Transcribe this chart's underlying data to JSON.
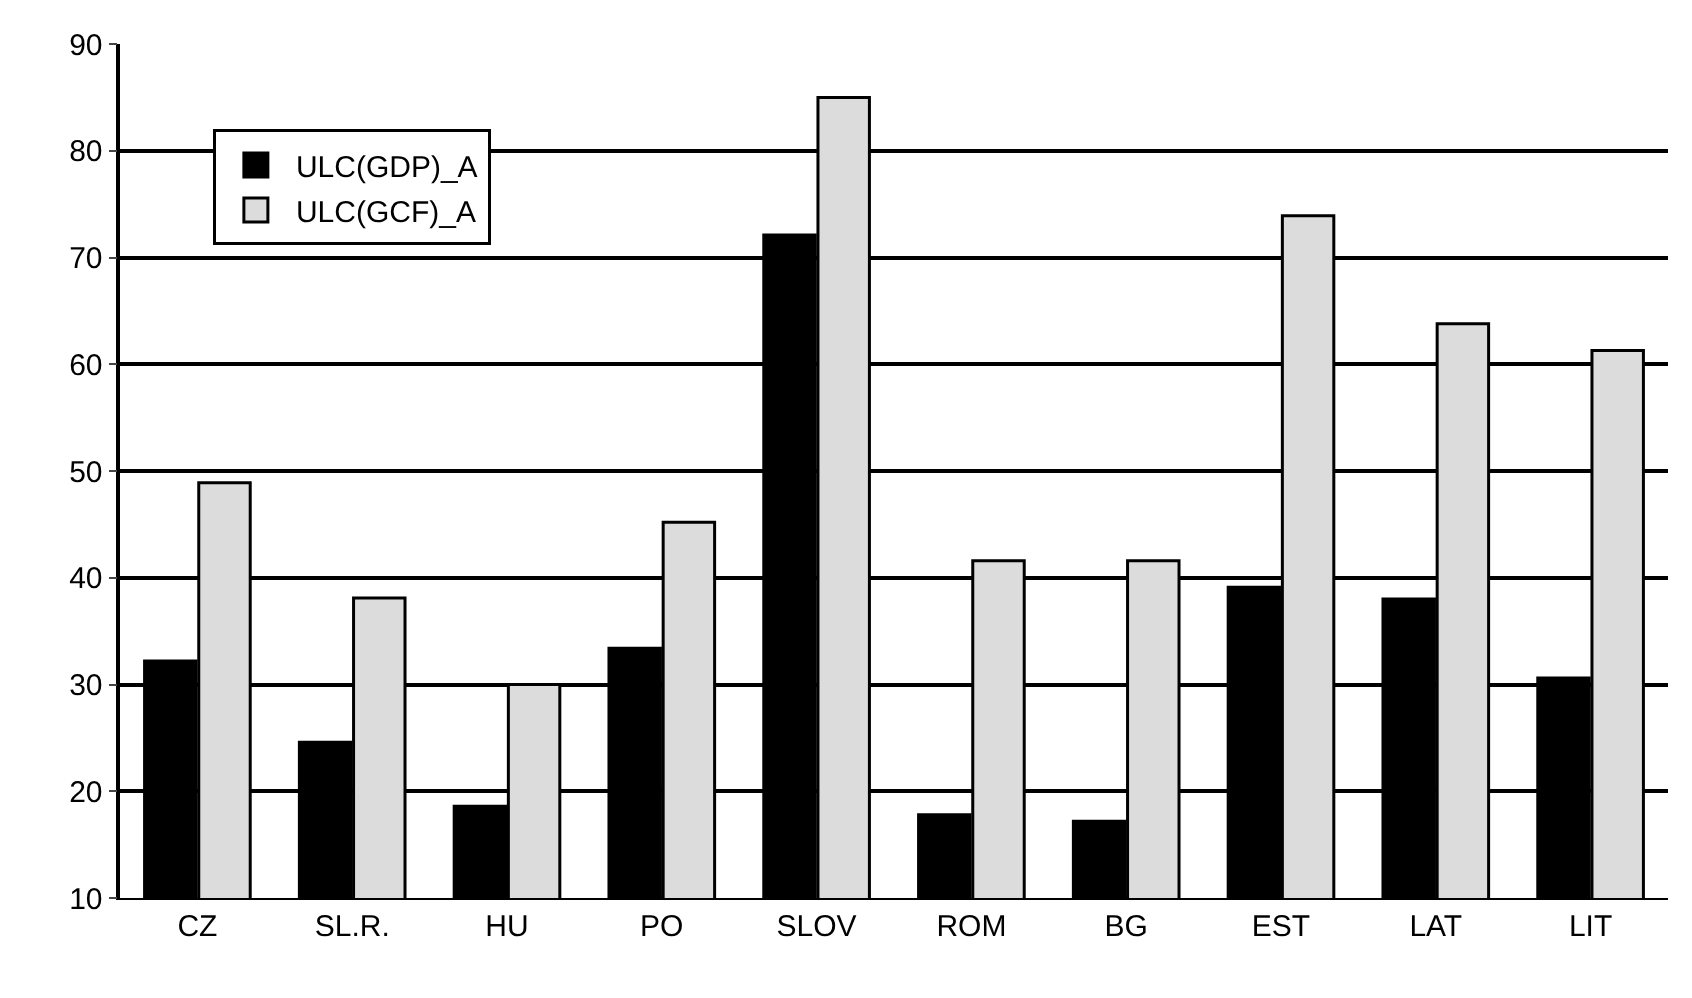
{
  "chart_data": {
    "type": "bar",
    "categories": [
      "CZ",
      "SL.R.",
      "HU",
      "PO",
      "SLOV",
      "ROM",
      "BG",
      "EST",
      "LAT",
      "LIT"
    ],
    "series": [
      {
        "name": "ULC(GDP)_A",
        "color": "#000000",
        "values": [
          32.2,
          24.6,
          18.6,
          33.4,
          72.1,
          17.8,
          17.2,
          39.1,
          38,
          30.6
        ]
      },
      {
        "name": "ULC(GCF)_A",
        "color": "#dcdcdc",
        "values": [
          48.9,
          38.1,
          30,
          45.2,
          85,
          41.6,
          41.6,
          73.9,
          63.8,
          61.3
        ]
      }
    ],
    "ylim": [
      10,
      90
    ],
    "yticks": [
      10,
      20,
      30,
      40,
      50,
      60,
      70,
      80,
      90
    ],
    "grid": "y",
    "legend": "top left"
  }
}
